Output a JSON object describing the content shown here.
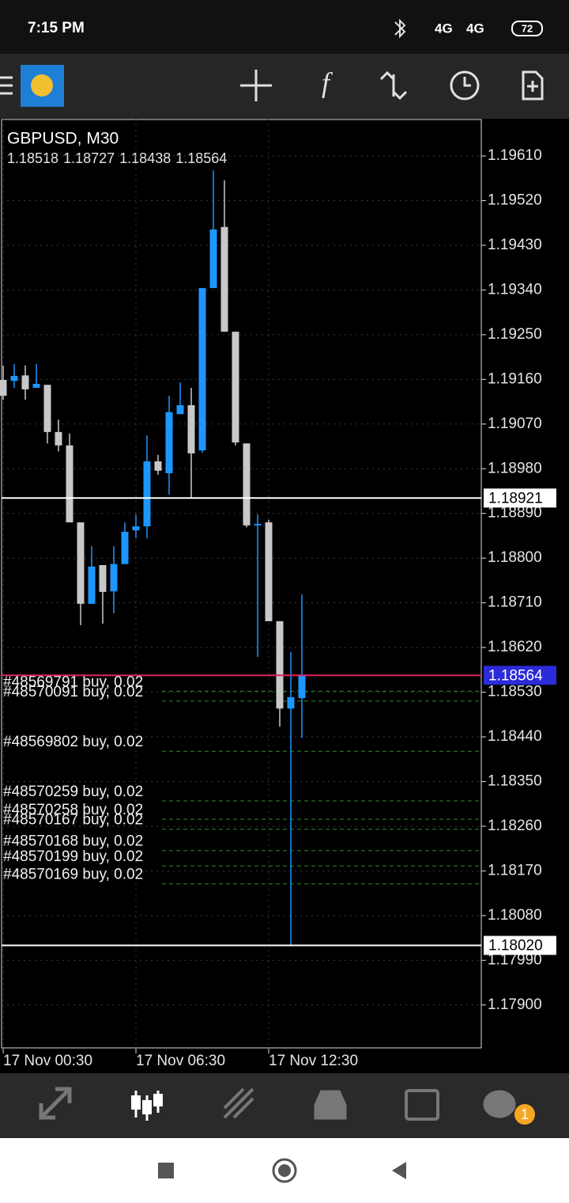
{
  "status_bar": {
    "time": "7:15 PM",
    "network_1": "4G",
    "network_2": "4G",
    "battery": "72"
  },
  "chart_data": {
    "type": "candlestick",
    "title": "GBPUSD, M30",
    "categories": [
      "17 Nov 00:30",
      null,
      null,
      null,
      null,
      null,
      null,
      null,
      null,
      null,
      null,
      null,
      "17 Nov 06:30",
      null,
      null,
      null,
      null,
      null,
      null,
      null,
      null,
      null,
      null,
      null,
      "17 Nov 12:30",
      null,
      null,
      null
    ],
    "open": [
      1.19159,
      1.19157,
      1.19168,
      1.19143,
      1.19149,
      1.19054,
      1.19027,
      1.18872,
      1.18708,
      1.18786,
      1.18733,
      1.18788,
      1.18856,
      1.18864,
      1.18995,
      1.18971,
      1.1909,
      1.19108,
      1.19017,
      1.19344,
      1.19467,
      1.19256,
      1.19031,
      1.18866,
      1.18872,
      1.18673,
      1.18497,
      1.18518
    ],
    "high": [
      1.19188,
      1.19191,
      1.19188,
      1.19191,
      1.19149,
      1.19079,
      1.19051,
      1.18872,
      1.18824,
      1.18786,
      1.18824,
      1.18872,
      1.18888,
      1.19047,
      1.19008,
      1.19127,
      1.19154,
      1.19143,
      1.19344,
      1.19581,
      1.19561,
      1.19256,
      1.19031,
      1.18888,
      1.18877,
      1.18673,
      1.18611,
      1.18727
    ],
    "low": [
      1.19119,
      1.19143,
      1.19119,
      1.19143,
      1.19031,
      1.19015,
      1.18872,
      1.18665,
      1.18708,
      1.18668,
      1.18689,
      1.18788,
      1.1884,
      1.1884,
      1.18968,
      1.18928,
      1.1909,
      1.1892,
      1.19012,
      1.19344,
      1.19256,
      1.19027,
      1.18862,
      1.18601,
      1.18673,
      1.18461,
      1.1802,
      1.18438
    ],
    "close": [
      1.19127,
      1.19167,
      1.1914,
      1.19151,
      1.19054,
      1.19027,
      1.18872,
      1.18708,
      1.18783,
      1.18732,
      1.18788,
      1.18853,
      1.18864,
      1.18995,
      1.18976,
      1.19094,
      1.19108,
      1.19011,
      1.19344,
      1.19462,
      1.19256,
      1.19033,
      1.18866,
      1.18869,
      1.18673,
      1.18497,
      1.1852,
      1.18564
    ],
    "up_color": "#1e96ff",
    "down_color": "#c8c8c8",
    "ylim": [
      1.17812,
      1.19685
    ],
    "yticks": [
      {
        "value": 1.1961,
        "label": "1.19610"
      },
      {
        "value": 1.1952,
        "label": "1.19520"
      },
      {
        "value": 1.1943,
        "label": "1.19430"
      },
      {
        "value": 1.1934,
        "label": "1.19340"
      },
      {
        "value": 1.1925,
        "label": "1.19250"
      },
      {
        "value": 1.1916,
        "label": "1.19160"
      },
      {
        "value": 1.1907,
        "label": "1.19070"
      },
      {
        "value": 1.1898,
        "label": "1.18980"
      },
      {
        "value": 1.1889,
        "label": "1.18890"
      },
      {
        "value": 1.188,
        "label": "1.18800"
      },
      {
        "value": 1.1871,
        "label": "1.18710"
      },
      {
        "value": 1.1862,
        "label": "1.18620"
      },
      {
        "value": 1.1853,
        "label": "1.18530"
      },
      {
        "value": 1.1844,
        "label": "1.18440"
      },
      {
        "value": 1.1835,
        "label": "1.18350"
      },
      {
        "value": 1.1826,
        "label": "1.18260"
      },
      {
        "value": 1.1817,
        "label": "1.18170"
      },
      {
        "value": 1.1808,
        "label": "1.18080"
      },
      {
        "value": 1.1799,
        "label": "1.17990"
      },
      {
        "value": 1.179,
        "label": "1.17900"
      }
    ],
    "grid": true,
    "price_lines": [
      {
        "value": 1.18921,
        "label": "1.18921",
        "color": "#ffffff",
        "label_bg": "#ffffff",
        "label_color": "#000000"
      },
      {
        "value": 1.18564,
        "label": "1.18564",
        "color": "#e0245e",
        "label_bg": "#2b2bd9",
        "label_color": "#ffffff"
      },
      {
        "value": 1.1802,
        "label": "1.18020",
        "color": "#ffffff",
        "label_bg": "#ffffff",
        "label_color": "#000000"
      }
    ],
    "orders": [
      {
        "label": "#48569791 buy, 0.02",
        "price": 1.18532
      },
      {
        "label": "#48570091 buy, 0.02",
        "price": 1.18512
      },
      {
        "label": "#48569802 buy, 0.02",
        "price": 1.18411
      },
      {
        "label": "#48570259 buy, 0.02",
        "price": 1.18311
      },
      {
        "label": "#48570258 buy, 0.02",
        "price": 1.18274
      },
      {
        "label": "#48570167 buy, 0.02",
        "price": 1.18254
      },
      {
        "label": "#48570168 buy, 0.02",
        "price": 1.18211
      },
      {
        "label": "#48570199 buy, 0.02",
        "price": 1.1818
      },
      {
        "label": "#48570169 buy, 0.02",
        "price": 1.18144
      }
    ],
    "order_color": "#2e8b2e"
  },
  "tab_bar": {
    "chat_badge": "1"
  }
}
